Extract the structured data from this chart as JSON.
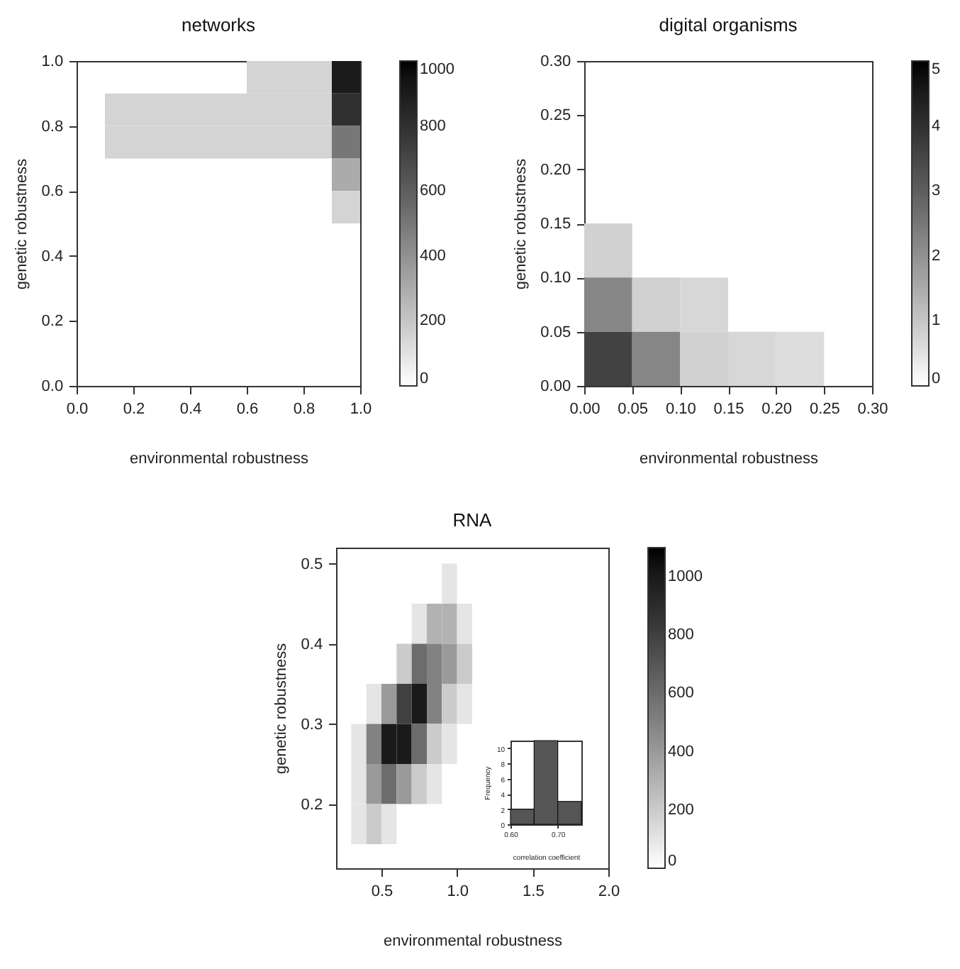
{
  "chart_data": [
    {
      "type": "scatter",
      "marker": "square",
      "title": "networks",
      "xlabel": "environmental robustness",
      "ylabel": "genetic robustness",
      "x": [
        0.65,
        0.75,
        0.85,
        0.95,
        0.15,
        0.25,
        0.35,
        0.45,
        0.55,
        0.65,
        0.75,
        0.85,
        0.95,
        0.15,
        0.25,
        0.35,
        0.45,
        0.55,
        0.65,
        0.75,
        0.85,
        0.95,
        0.95,
        0.95
      ],
      "values": [
        0.95,
        0.95,
        0.95,
        0.95,
        0.85,
        0.85,
        0.85,
        0.85,
        0.85,
        0.85,
        0.85,
        0.85,
        0.85,
        0.75,
        0.75,
        0.75,
        0.75,
        0.75,
        0.75,
        0.75,
        0.75,
        0.75,
        0.65,
        0.55
      ],
      "cvalues": [
        150,
        150,
        150,
        900,
        150,
        150,
        150,
        150,
        150,
        150,
        150,
        150,
        800,
        150,
        150,
        150,
        150,
        150,
        150,
        150,
        150,
        500,
        300,
        150
      ],
      "xlim": [
        0,
        1
      ],
      "ylim": [
        0,
        1
      ],
      "xticks": [
        {
          "value": 0,
          "label": "0.0"
        },
        {
          "value": 0.2,
          "label": "0.2"
        },
        {
          "value": 0.4,
          "label": "0.4"
        },
        {
          "value": 0.6,
          "label": "0.6"
        },
        {
          "value": 0.8,
          "label": "0.8"
        },
        {
          "value": 1,
          "label": "1.0"
        }
      ],
      "yticks": [
        {
          "value": 0,
          "label": "0.0"
        },
        {
          "value": 0.2,
          "label": "0.2"
        },
        {
          "value": 0.4,
          "label": "0.4"
        },
        {
          "value": 0.6,
          "label": "0.6"
        },
        {
          "value": 0.8,
          "label": "0.8"
        },
        {
          "value": 1,
          "label": "1.0"
        }
      ],
      "clim": [
        0,
        1000
      ],
      "cticks": [
        0,
        200,
        400,
        600,
        800,
        1000
      ]
    },
    {
      "type": "scatter",
      "marker": "square",
      "title": "digital organisms",
      "xlabel": "environmental robustness",
      "ylabel": "genetic robustness",
      "x": [
        0.025,
        0.025,
        0.075,
        0.125,
        0.025,
        0.075,
        0.125,
        0.175,
        0.225
      ],
      "values": [
        0.125,
        0.075,
        0.075,
        0.075,
        0.025,
        0.025,
        0.025,
        0.025,
        0.025
      ],
      "cvalues": [
        0.8,
        2.2,
        0.8,
        0.7,
        3.6,
        2.2,
        0.8,
        0.7,
        0.6
      ],
      "xlim": [
        0,
        0.3
      ],
      "ylim": [
        0,
        0.3
      ],
      "xticks": [
        {
          "value": 0,
          "label": "0.00"
        },
        {
          "value": 0.05,
          "label": "0.05"
        },
        {
          "value": 0.1,
          "label": "0.10"
        },
        {
          "value": 0.15,
          "label": "0.15"
        },
        {
          "value": 0.2,
          "label": "0.20"
        },
        {
          "value": 0.25,
          "label": "0.25"
        },
        {
          "value": 0.3,
          "label": "0.30"
        }
      ],
      "yticks": [
        {
          "value": 0,
          "label": "0.00"
        },
        {
          "value": 0.05,
          "label": "0.05"
        },
        {
          "value": 0.1,
          "label": "0.10"
        },
        {
          "value": 0.15,
          "label": "0.15"
        },
        {
          "value": 0.2,
          "label": "0.20"
        },
        {
          "value": 0.25,
          "label": "0.25"
        },
        {
          "value": 0.3,
          "label": "0.30"
        }
      ],
      "clim": [
        0,
        5
      ],
      "cticks": [
        0,
        1,
        2,
        3,
        4,
        5
      ]
    },
    {
      "type": "scatter",
      "marker": "square",
      "title": "RNA",
      "xlabel": "environmental robustness",
      "ylabel": "genetic robustness",
      "x": [
        0.95,
        0.75,
        0.85,
        0.95,
        1.05,
        0.65,
        0.75,
        0.85,
        0.95,
        1.05,
        0.45,
        0.55,
        0.65,
        0.75,
        0.85,
        0.95,
        1.05,
        0.35,
        0.45,
        0.55,
        0.65,
        0.75,
        0.85,
        0.95,
        0.35,
        0.45,
        0.55,
        0.65,
        0.75,
        0.85,
        0.35,
        0.45,
        0.55
      ],
      "values": [
        0.475,
        0.425,
        0.425,
        0.425,
        0.425,
        0.375,
        0.375,
        0.375,
        0.375,
        0.375,
        0.325,
        0.325,
        0.325,
        0.325,
        0.325,
        0.325,
        0.325,
        0.275,
        0.275,
        0.275,
        0.275,
        0.275,
        0.275,
        0.275,
        0.225,
        0.225,
        0.225,
        0.225,
        0.225,
        0.225,
        0.175,
        0.175,
        0.175
      ],
      "cvalues": [
        100,
        100,
        300,
        300,
        100,
        200,
        600,
        500,
        400,
        200,
        100,
        400,
        800,
        1000,
        500,
        200,
        100,
        100,
        500,
        1000,
        1000,
        600,
        200,
        100,
        100,
        400,
        600,
        400,
        200,
        100,
        100,
        200,
        100
      ],
      "xlim": [
        0.2,
        2
      ],
      "ylim": [
        0.12,
        0.52
      ],
      "xticks": [
        0.5,
        {
          "value": 1,
          "label": "1.0"
        },
        1.5,
        {
          "value": 2,
          "label": "2.0"
        }
      ],
      "yticks": [
        0.2,
        0.3,
        0.4,
        0.5
      ],
      "clim": [
        0,
        1100
      ],
      "cticks": [
        0,
        200,
        400,
        600,
        800,
        1000
      ]
    },
    {
      "type": "histogram",
      "xlabel": "correlation coefficient",
      "ylabel": "Frequency",
      "bins": [
        0.6,
        0.65,
        0.7,
        0.75
      ],
      "values": [
        2,
        11,
        3
      ],
      "color": "#555555",
      "xlim": [
        0.6,
        0.75
      ],
      "ylim": [
        0,
        11
      ],
      "xticks": [
        {
          "value": 0.6,
          "label": "0.60"
        },
        {
          "value": 0.7,
          "label": "0.70"
        }
      ],
      "yticks": [
        0,
        2,
        4,
        6,
        8,
        10
      ]
    }
  ]
}
